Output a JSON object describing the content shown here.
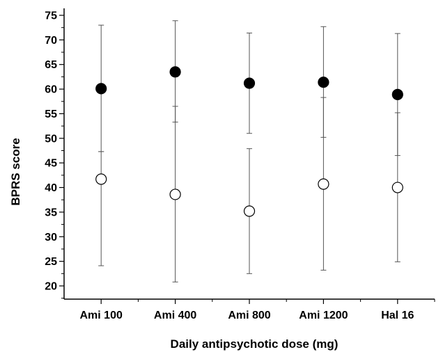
{
  "chart_data": {
    "type": "scatter",
    "xlabel": "Daily antipsychotic dose (mg)",
    "ylabel": "BPRS score",
    "categories": [
      "Ami 100",
      "Ami 400",
      "Ami 800",
      "Ami 1200",
      "Hal 16"
    ],
    "ylim": [
      17,
      75
    ],
    "yticks": [
      20,
      25,
      30,
      35,
      40,
      45,
      50,
      55,
      60,
      65,
      70,
      75
    ],
    "grid": false,
    "legend": "none",
    "error_bars": true,
    "series": [
      {
        "marker": "filled-circle",
        "color": "#000000",
        "values": [
          60.1,
          63.5,
          61.2,
          61.4,
          58.9
        ],
        "upper": [
          73.0,
          73.9,
          71.4,
          72.7,
          71.3
        ],
        "lower": [
          47.3,
          53.3,
          51.0,
          50.2,
          46.5
        ]
      },
      {
        "marker": "open-circle",
        "color": "#000000",
        "values": [
          41.7,
          38.6,
          35.2,
          40.7,
          40.0
        ],
        "upper": [
          47.3,
          56.5,
          47.9,
          58.3,
          55.2
        ],
        "lower": [
          24.1,
          20.8,
          22.5,
          23.2,
          24.9
        ]
      }
    ]
  }
}
